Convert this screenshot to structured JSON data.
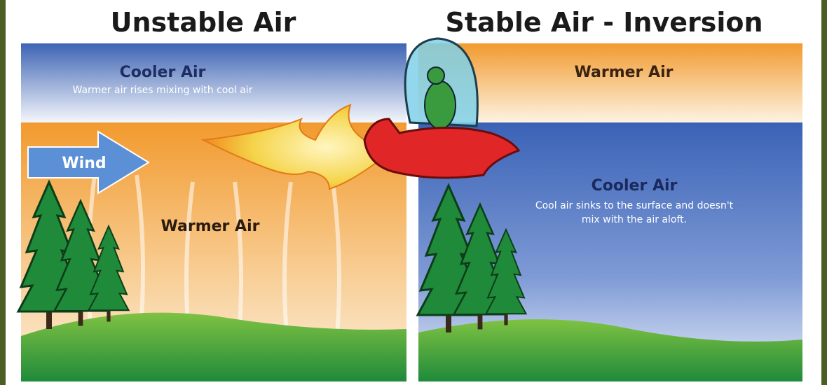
{
  "left_panel": {
    "title": "Unstable Air",
    "top_label": "Cooler Air",
    "top_note": "Warmer air rises mixing with cool air",
    "arrow_label": "Wind",
    "bottom_label": "Warmer Air"
  },
  "right_panel": {
    "title": "Stable Air - Inversion",
    "top_label": "Warmer Air",
    "bottom_label": "Cooler Air",
    "bottom_note_lines": [
      "Cool air sinks to the surface and doesn't",
      "mix with the air aloft."
    ]
  }
}
